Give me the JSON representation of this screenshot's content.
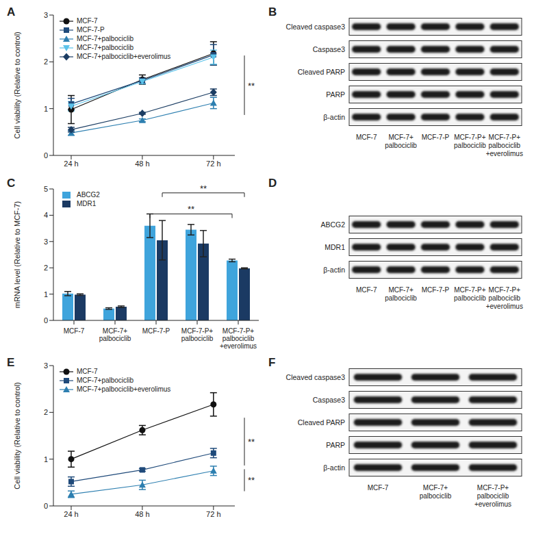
{
  "chart_data": [
    {
      "panel": "A",
      "type": "line",
      "categories": [
        "24 h",
        "48 h",
        "72 h"
      ],
      "ylabel": "Cell viability (Relative to control)",
      "ylim": [
        0,
        3
      ],
      "yticks": [
        0,
        1,
        2,
        3
      ],
      "legend": "upper left",
      "series": [
        {
          "name": "MCF-7",
          "color": "#111111",
          "marker": "circle",
          "values": [
            0.98,
            1.62,
            2.18
          ],
          "errors": [
            0.3,
            0.1,
            0.25
          ]
        },
        {
          "name": "MCF-7-P",
          "color": "#1f4a7a",
          "marker": "square",
          "values": [
            1.1,
            1.6,
            2.15
          ],
          "errors": [
            0.12,
            0.06,
            0.22
          ]
        },
        {
          "name": "MCF-7+palbociclib",
          "color": "#2d7fb0",
          "marker": "triangle-up",
          "values": [
            0.48,
            0.75,
            1.12
          ],
          "errors": [
            0.05,
            0.03,
            0.12
          ]
        },
        {
          "name": "MCF-7+palbociclib",
          "color": "#5cc3ea",
          "marker": "triangle-down",
          "values": [
            1.05,
            1.58,
            2.1
          ],
          "errors": [
            0.1,
            0.05,
            0.15
          ]
        },
        {
          "name": "MCF-7+palbociclib+everolimus",
          "color": "#1b3d63",
          "marker": "diamond",
          "values": [
            0.55,
            0.9,
            1.35
          ],
          "errors": [
            0.05,
            0.02,
            0.07
          ]
        }
      ],
      "annotations": [
        {
          "text": "**",
          "from": 2.15,
          "to": 0.85
        }
      ]
    },
    {
      "panel": "C",
      "type": "bar",
      "categories": [
        "MCF-7",
        "MCF-7+\npalbociclib",
        "MCF-7-P",
        "MCF-7-P+\npalbociclib",
        "MCF-7-P+\npalbociclib\n+everolimus"
      ],
      "ylabel": "mRNA level (Relative to MCF-7)",
      "ylim": [
        0,
        5
      ],
      "yticks": [
        0,
        1,
        2,
        3,
        4,
        5
      ],
      "legend": "upper left",
      "series": [
        {
          "name": "ABCG2",
          "color": "#3fa4dc",
          "values": [
            1.02,
            0.45,
            3.6,
            3.45,
            2.28
          ],
          "errors": [
            0.08,
            0.03,
            0.45,
            0.2,
            0.05
          ]
        },
        {
          "name": "MDR1",
          "color": "#1b3a63",
          "values": [
            0.98,
            0.52,
            3.05,
            2.92,
            1.98
          ],
          "errors": [
            0.03,
            0.03,
            0.75,
            0.5,
            0.02
          ]
        }
      ],
      "annotations": [
        {
          "text": "**",
          "series": "ABCG2",
          "from": "MCF-7-P",
          "to": "MCF-7-P+\npalbociclib\n+everolimus",
          "y": 4.05
        },
        {
          "text": "**",
          "series": "MDR1",
          "from": "MCF-7-P",
          "to": "MCF-7-P+\npalbociclib\n+everolimus",
          "y": 4.85
        }
      ]
    },
    {
      "panel": "E",
      "type": "line",
      "categories": [
        "24 h",
        "48 h",
        "72 h"
      ],
      "ylabel": "Cell viability (Relative to control)",
      "ylim": [
        0,
        3
      ],
      "yticks": [
        0,
        1,
        2,
        3
      ],
      "legend": "upper left",
      "series": [
        {
          "name": "MCF-7",
          "color": "#111111",
          "marker": "circle",
          "values": [
            1.0,
            1.62,
            2.17
          ],
          "errors": [
            0.17,
            0.1,
            0.25
          ]
        },
        {
          "name": "MCF-7+palbociclib",
          "color": "#1f4a7a",
          "marker": "square",
          "values": [
            0.52,
            0.77,
            1.13
          ],
          "errors": [
            0.1,
            0.03,
            0.1
          ]
        },
        {
          "name": "MCF-7+palbociclib+everolimus",
          "color": "#2d7fb0",
          "marker": "triangle-up",
          "values": [
            0.25,
            0.45,
            0.75
          ],
          "errors": [
            0.07,
            0.1,
            0.1
          ]
        }
      ],
      "annotations": [
        {
          "text": "**",
          "from": 1.9,
          "to": 0.85
        },
        {
          "text": "**",
          "from": 0.8,
          "to": 0.3
        }
      ]
    }
  ],
  "blots": [
    {
      "panel": "B",
      "rows": [
        "Cleaved caspase3",
        "Caspase3",
        "Cleaved PARP",
        "PARP",
        "β-actin"
      ],
      "lanes": [
        "MCF-7",
        "MCF-7+\npalbociclib",
        "MCF-7-P",
        "MCF-7-P+\npalbociclib",
        "MCF-7-P+\npalbociclib\n+everolimus"
      ]
    },
    {
      "panel": "D",
      "rows": [
        "ABCG2",
        "MDR1",
        "β-actin"
      ],
      "lanes": [
        "MCF-7",
        "MCF-7+\npalbociclib",
        "MCF-7-P",
        "MCF-7-P+\npalbociclib",
        "MCF-7-P+\npalbociclib\n+everolimus"
      ]
    },
    {
      "panel": "F",
      "rows": [
        "Cleaved caspase3",
        "Caspase3",
        "Cleaved PARP",
        "PARP",
        "β-actin"
      ],
      "lanes": [
        "MCF-7",
        "MCF-7+\npalbociclib",
        "MCF-7-P+\npalbociclib\n+everolimus"
      ]
    }
  ]
}
